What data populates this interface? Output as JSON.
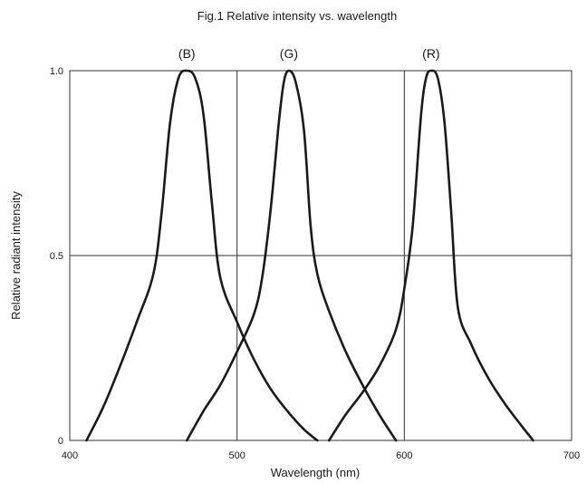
{
  "chart_data": {
    "type": "line",
    "title": "Fig.1 Relative intensity vs. wavelength",
    "xlabel": "Wavelength (nm)",
    "ylabel": "Relative radiant intensity",
    "xlim": [
      400,
      700
    ],
    "ylim": [
      0,
      1.0
    ],
    "x_ticks": [
      400,
      500,
      600,
      700
    ],
    "x_tick_labels": [
      "400",
      "500",
      "600",
      "700"
    ],
    "y_ticks": [
      0,
      0.5,
      1.0
    ],
    "y_tick_labels": [
      "0",
      "0.5",
      "1.0"
    ],
    "grid": {
      "x": [
        500,
        600
      ],
      "y": [
        0.5
      ]
    },
    "series": [
      {
        "name": "(B)",
        "peak": 470,
        "points": [
          [
            410,
            0
          ],
          [
            420,
            0.09
          ],
          [
            430,
            0.2
          ],
          [
            440,
            0.32
          ],
          [
            450,
            0.45
          ],
          [
            455,
            0.62
          ],
          [
            460,
            0.86
          ],
          [
            465,
            0.98
          ],
          [
            470,
            1.0
          ],
          [
            475,
            0.98
          ],
          [
            480,
            0.88
          ],
          [
            485,
            0.64
          ],
          [
            490,
            0.44
          ],
          [
            500,
            0.32
          ],
          [
            510,
            0.22
          ],
          [
            520,
            0.14
          ],
          [
            530,
            0.08
          ],
          [
            540,
            0.03
          ],
          [
            548,
            0
          ]
        ]
      },
      {
        "name": "(G)",
        "peak": 531,
        "points": [
          [
            470,
            0
          ],
          [
            480,
            0.08
          ],
          [
            490,
            0.15
          ],
          [
            500,
            0.24
          ],
          [
            510,
            0.34
          ],
          [
            515,
            0.44
          ],
          [
            520,
            0.62
          ],
          [
            525,
            0.86
          ],
          [
            528,
            0.97
          ],
          [
            531,
            1.0
          ],
          [
            535,
            0.97
          ],
          [
            540,
            0.84
          ],
          [
            544,
            0.58
          ],
          [
            548,
            0.45
          ],
          [
            555,
            0.35
          ],
          [
            565,
            0.24
          ],
          [
            575,
            0.15
          ],
          [
            585,
            0.07
          ],
          [
            595,
            0
          ]
        ]
      },
      {
        "name": "(R)",
        "peak": 616,
        "points": [
          [
            555,
            0
          ],
          [
            565,
            0.07
          ],
          [
            575,
            0.13
          ],
          [
            585,
            0.2
          ],
          [
            595,
            0.3
          ],
          [
            600,
            0.41
          ],
          [
            605,
            0.58
          ],
          [
            610,
            0.88
          ],
          [
            613,
            0.98
          ],
          [
            616,
            1.0
          ],
          [
            620,
            0.98
          ],
          [
            624,
            0.86
          ],
          [
            628,
            0.62
          ],
          [
            632,
            0.36
          ],
          [
            640,
            0.26
          ],
          [
            650,
            0.17
          ],
          [
            660,
            0.1
          ],
          [
            670,
            0.04
          ],
          [
            677,
            0
          ]
        ]
      }
    ]
  }
}
